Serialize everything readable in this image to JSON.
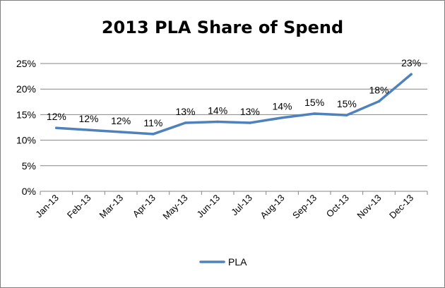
{
  "chart_data": {
    "type": "line",
    "title": "2013 PLA Share of Spend",
    "xlabel": "",
    "ylabel": "",
    "categories": [
      "Jan-13",
      "Feb-13",
      "Mar-13",
      "Apr-13",
      "May-13",
      "Jun-13",
      "Jul-13",
      "Aug-13",
      "Sep-13",
      "Oct-13",
      "Nov-13",
      "Dec-13"
    ],
    "series": [
      {
        "name": "PLA",
        "values": [
          12.4,
          12.0,
          11.6,
          11.2,
          13.4,
          13.6,
          13.4,
          14.4,
          15.2,
          14.9,
          17.6,
          22.9
        ],
        "labels": [
          "12%",
          "12%",
          "12%",
          "11%",
          "13%",
          "14%",
          "13%",
          "14%",
          "15%",
          "15%",
          "18%",
          "23%"
        ],
        "color": "#4f81bd"
      }
    ],
    "ylim": [
      0,
      25
    ],
    "yticks": [
      0,
      5,
      10,
      15,
      20,
      25
    ],
    "yticklabels": [
      "0%",
      "5%",
      "10%",
      "15%",
      "20%",
      "25%"
    ],
    "grid": true,
    "grid_color": "#868686",
    "legend_position": "bottom"
  }
}
